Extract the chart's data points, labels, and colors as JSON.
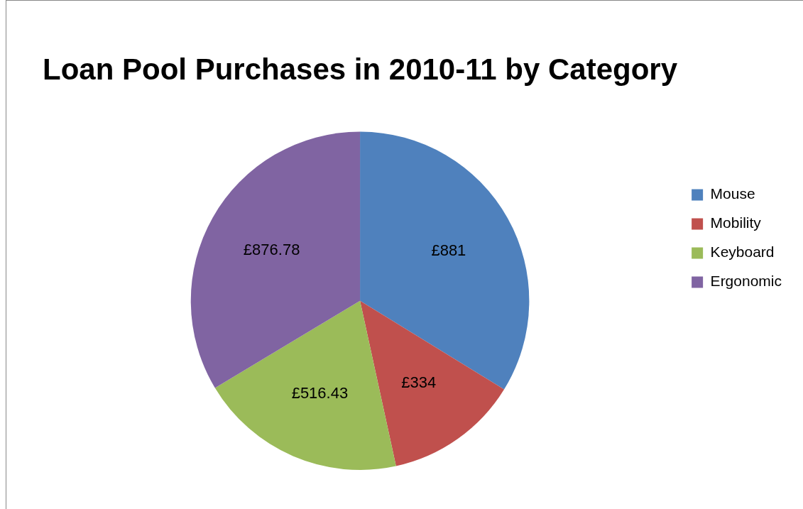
{
  "chart_data": {
    "type": "pie",
    "title": "Loan Pool Purchases in 2010-11 by Category",
    "categories": [
      "Mouse",
      "Mobility",
      "Keyboard",
      "Ergonomic"
    ],
    "values": [
      881,
      334,
      516.43,
      876.78
    ],
    "colors": [
      "#4f81bd",
      "#c0504d",
      "#9bbb59",
      "#8064a2"
    ],
    "value_labels": [
      "£881",
      "£334",
      "£516.43",
      "£876.78"
    ],
    "legend": "right"
  }
}
